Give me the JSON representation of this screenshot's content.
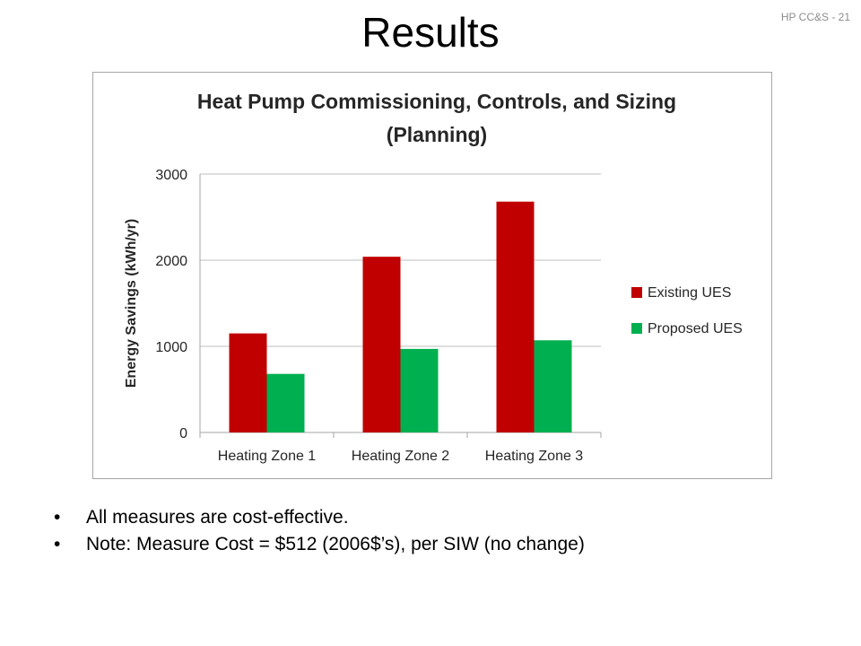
{
  "slide": {
    "title": "Results",
    "page_number": "HP CC&S - 21",
    "bullets": [
      "All measures are cost-effective.",
      "Note: Measure Cost = $512 (2006$’s), per SIW (no change)"
    ]
  },
  "chart_data": {
    "type": "bar",
    "title_lines": [
      "Heat Pump Commissioning, Controls, and Sizing",
      "(Planning)"
    ],
    "xlabel": "",
    "ylabel": "Energy Savings (kWh/yr)",
    "ylim": [
      0,
      3000
    ],
    "yticks": [
      0,
      1000,
      2000,
      3000
    ],
    "grid": true,
    "legend_position": "right",
    "categories": [
      "Heating Zone 1",
      "Heating Zone 2",
      "Heating Zone 3"
    ],
    "series": [
      {
        "name": "Existing UES",
        "color": "#c00000",
        "values": [
          1150,
          2040,
          2680
        ]
      },
      {
        "name": "Proposed UES",
        "color": "#00b050",
        "values": [
          680,
          970,
          1070
        ]
      }
    ]
  }
}
